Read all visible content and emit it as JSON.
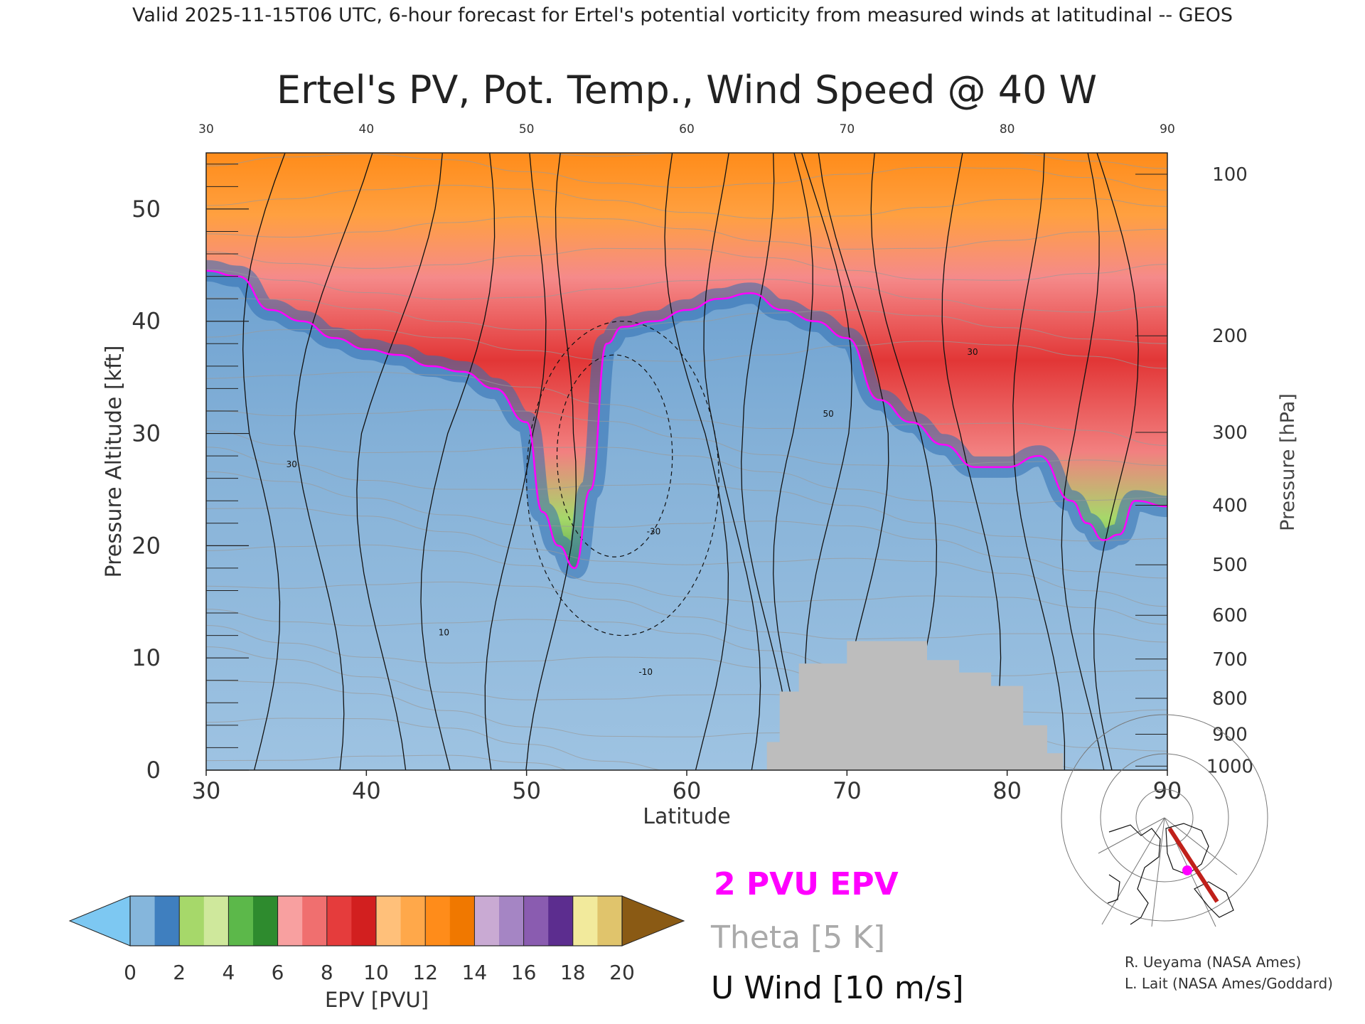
{
  "header": {
    "top_line": "Valid 2025-11-15T06 UTC, 6-hour forecast for Ertel's potential vorticity from measured winds at latitudinal -- GEOS"
  },
  "chart_data": {
    "type": "heatmap",
    "title": "Ertel's PV, Pot. Temp., Wind Speed @ 40 W",
    "xlabel": "Latitude",
    "ylabel": "Pressure Altitude [kft]",
    "y2label": "Pressure [hPa]",
    "xlim": [
      30,
      90
    ],
    "ylim": [
      0,
      55
    ],
    "x_ticks": [
      "30",
      "40",
      "50",
      "60",
      "70",
      "80",
      "90"
    ],
    "x_ticks_top": [
      "30",
      "40",
      "50",
      "60",
      "70",
      "80",
      "90"
    ],
    "y_ticks": [
      "0",
      "10",
      "20",
      "30",
      "40",
      "50"
    ],
    "pressure_ticks": [
      {
        "label": "100",
        "kft": 53.1
      },
      {
        "label": "200",
        "kft": 38.7
      },
      {
        "label": "300",
        "kft": 30.1
      },
      {
        "label": "400",
        "kft": 23.6
      },
      {
        "label": "500",
        "kft": 18.3
      },
      {
        "label": "600",
        "kft": 13.8
      },
      {
        "label": "700",
        "kft": 9.9
      },
      {
        "label": "800",
        "kft": 6.4
      },
      {
        "label": "900",
        "kft": 3.2
      },
      {
        "label": "1000",
        "kft": 0.36
      }
    ],
    "tropopause_2pvu_kft": [
      [
        30,
        44.5
      ],
      [
        32,
        44.0
      ],
      [
        34,
        41.0
      ],
      [
        36,
        40.0
      ],
      [
        38,
        38.5
      ],
      [
        40,
        37.5
      ],
      [
        42,
        37.0
      ],
      [
        44,
        36.0
      ],
      [
        46,
        35.5
      ],
      [
        48,
        34.0
      ],
      [
        50,
        31.0
      ],
      [
        51,
        23.0
      ],
      [
        52,
        20.0
      ],
      [
        53,
        18.0
      ],
      [
        54,
        25.0
      ],
      [
        55,
        38.0
      ],
      [
        56,
        39.5
      ],
      [
        58,
        40.0
      ],
      [
        60,
        41.0
      ],
      [
        62,
        42.0
      ],
      [
        64,
        42.5
      ],
      [
        66,
        41.0
      ],
      [
        68,
        40.0
      ],
      [
        70,
        38.5
      ],
      [
        72,
        33.0
      ],
      [
        74,
        31.0
      ],
      [
        76,
        29.0
      ],
      [
        78,
        27.0
      ],
      [
        80,
        27.0
      ],
      [
        82,
        28.0
      ],
      [
        84,
        24.0
      ],
      [
        85,
        22.0
      ],
      [
        86,
        20.5
      ],
      [
        87,
        21.0
      ],
      [
        88,
        24.0
      ],
      [
        90,
        23.5
      ]
    ],
    "terrain_kft": [
      [
        65,
        0
      ],
      [
        65,
        2.5
      ],
      [
        65.8,
        2.5
      ],
      [
        65.8,
        7
      ],
      [
        67,
        7
      ],
      [
        67,
        9.5
      ],
      [
        70,
        9.5
      ],
      [
        70,
        11.5
      ],
      [
        75,
        11.5
      ],
      [
        75,
        9.8
      ],
      [
        77,
        9.8
      ],
      [
        77,
        8.7
      ],
      [
        79,
        8.7
      ],
      [
        79,
        7.5
      ],
      [
        81,
        7.5
      ],
      [
        81,
        4
      ],
      [
        82.5,
        4
      ],
      [
        82.5,
        1.5
      ],
      [
        83.5,
        1.5
      ],
      [
        83.5,
        0
      ]
    ],
    "wind_contour_labels": [
      "10",
      "30",
      "50",
      "-10",
      "-30"
    ],
    "colorbar": {
      "label": "EPV [PVU]",
      "ticks": [
        "0",
        "2",
        "4",
        "6",
        "8",
        "10",
        "12",
        "14",
        "16",
        "18",
        "20"
      ],
      "colors": [
        "#85b6dc",
        "#3f7fbf",
        "#a6d86a",
        "#cfe89c",
        "#5cb84a",
        "#2e8b2e",
        "#f8a0a0",
        "#f06f6f",
        "#e53c3c",
        "#d21f1f",
        "#ffc07a",
        "#ffa84a",
        "#ff8c1a",
        "#f07800",
        "#c9aad3",
        "#a585c4",
        "#8a5cb0",
        "#5c2d8f",
        "#f2ea9c",
        "#e0c46c"
      ],
      "under_color": "#7dc8f2",
      "over_color": "#8a5a14"
    }
  },
  "legend": {
    "epv_2pvu": "2 PVU EPV",
    "theta": "Theta [5 K]",
    "u_wind": "U Wind [10 m/s]",
    "epv_color": "#ff00ff",
    "theta_color": "#aaaaaa",
    "wind_color": "#111111"
  },
  "credits": {
    "line1": "R. Ueyama (NASA Ames)",
    "line2": "L. Lait (NASA Ames/Goddard)"
  },
  "inset_map": {
    "marker_color": "#ff00ff",
    "track_color": "#c0201a"
  }
}
